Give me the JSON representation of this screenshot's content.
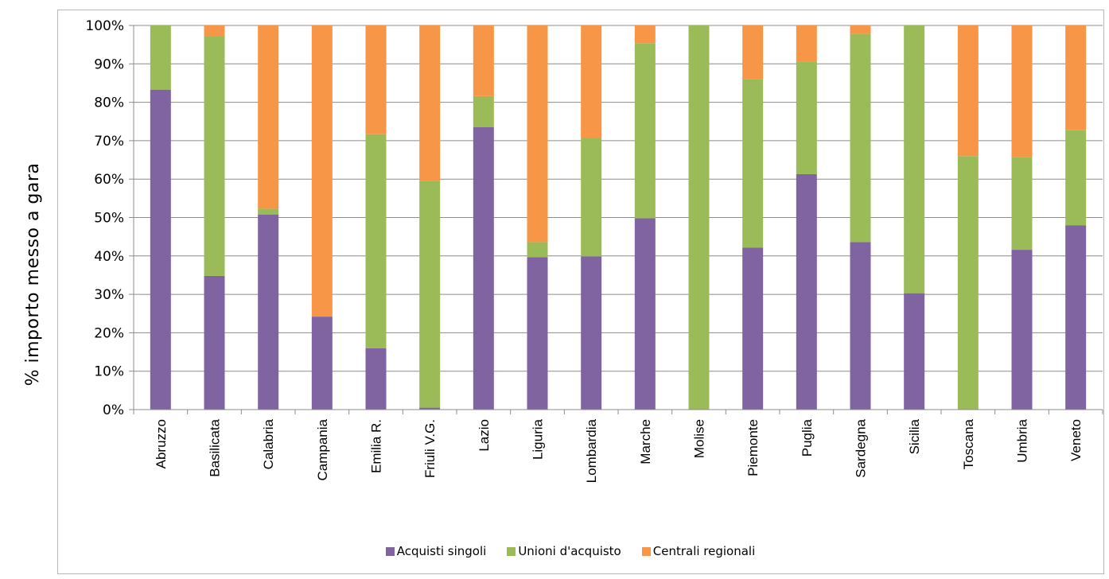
{
  "chart_data": {
    "type": "bar",
    "stacked": "percent",
    "title": "",
    "xlabel": "",
    "ylabel": "% importo messo a gara",
    "ylim": [
      0,
      100
    ],
    "yticks": [
      "0%",
      "10%",
      "20%",
      "30%",
      "40%",
      "50%",
      "60%",
      "70%",
      "80%",
      "90%",
      "100%"
    ],
    "grid": true,
    "legend_position": "bottom",
    "categories": [
      "Abruzzo",
      "Basilicata",
      "Calabria",
      "Campania",
      "Emilia R.",
      "Friuli V.G.",
      "Lazio",
      "Liguria",
      "Lombardia",
      "Marche",
      "Molise",
      "Piemonte",
      "Puglia",
      "Sardegna",
      "Sicilia",
      "Toscana",
      "Umbria",
      "Veneto"
    ],
    "series": [
      {
        "name": "Acquisti singoli",
        "color": "#8064a2",
        "values": [
          83.3,
          34.8,
          50.8,
          24.2,
          16.0,
          0.5,
          73.5,
          39.7,
          39.9,
          49.8,
          0.0,
          42.2,
          61.3,
          43.6,
          30.3,
          0.0,
          41.6,
          48.0
        ]
      },
      {
        "name": "Unioni d'acquisto",
        "color": "#9bbb59",
        "values": [
          16.7,
          62.5,
          1.5,
          0.0,
          55.7,
          59.1,
          8.1,
          3.9,
          30.7,
          45.6,
          100.0,
          43.9,
          29.3,
          54.2,
          69.7,
          66.0,
          24.2,
          24.7
        ]
      },
      {
        "name": "Centrali regionali",
        "color": "#f79646",
        "values": [
          0.0,
          2.7,
          47.7,
          75.8,
          28.3,
          40.4,
          18.4,
          56.4,
          29.4,
          4.6,
          0.0,
          13.9,
          9.4,
          2.2,
          0.0,
          34.0,
          34.2,
          27.3
        ]
      }
    ]
  }
}
